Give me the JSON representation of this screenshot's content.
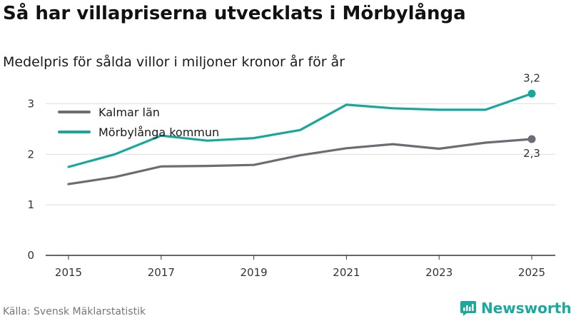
{
  "title": "Så har villapriserna utvecklats i Mörbylånga",
  "subtitle": "Medelpris för sålda villor i miljoner kronor år för år",
  "source": "Källa: Svensk Mäklarstatistik",
  "brand": "Newsworthy",
  "colors": {
    "kalmar": "#6d6b73",
    "morbylanga": "#17a79c",
    "brand": "#1aa99e",
    "grid": "#dddddd"
  },
  "chart_data": {
    "type": "line",
    "title": "Så har villapriserna utvecklats i Mörbylånga",
    "subtitle": "Medelpris för sålda villor i miljoner kronor år för år",
    "xlabel": "",
    "ylabel": "",
    "x": [
      2015,
      2016,
      2017,
      2018,
      2019,
      2020,
      2021,
      2022,
      2023,
      2024,
      2025
    ],
    "x_ticks": [
      "2015",
      "2017",
      "2019",
      "2021",
      "2023",
      "2025"
    ],
    "y_ticks": [
      "0",
      "1",
      "2",
      "3"
    ],
    "ylim": [
      0,
      3.5
    ],
    "legend_position": "top-left",
    "series": [
      {
        "name": "Kalmar län",
        "values": [
          1.41,
          1.55,
          1.76,
          1.77,
          1.79,
          1.98,
          2.12,
          2.2,
          2.11,
          2.23,
          2.3
        ],
        "end_label": "2,3"
      },
      {
        "name": "Mörbylånga kommun",
        "values": [
          1.75,
          2.0,
          2.37,
          2.27,
          2.32,
          2.48,
          2.98,
          2.91,
          2.88,
          2.88,
          3.2
        ],
        "end_label": "3,2"
      }
    ]
  }
}
